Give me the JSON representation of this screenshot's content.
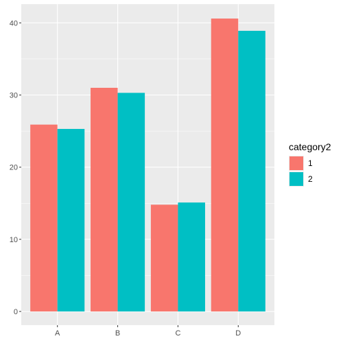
{
  "chart_data": {
    "type": "bar",
    "categories": [
      "A",
      "B",
      "C",
      "D"
    ],
    "series": [
      {
        "name": "1",
        "values": [
          25.9,
          31.0,
          14.8,
          40.6
        ],
        "color": "#F8766D"
      },
      {
        "name": "2",
        "values": [
          25.3,
          30.3,
          15.1,
          38.9
        ],
        "color": "#00BFC4"
      }
    ],
    "ylim": [
      -1.9,
      42.6
    ],
    "yticks": [
      0,
      10,
      20,
      30,
      40
    ],
    "yticks_labels": [
      "0",
      "10",
      "20",
      "30",
      "40"
    ],
    "title": "",
    "xlabel": "",
    "ylabel": "",
    "grid": true,
    "legend": {
      "title": "category2",
      "position": "right"
    },
    "panel_background": "#EBEBEB",
    "grid_color": "#FFFFFF"
  }
}
